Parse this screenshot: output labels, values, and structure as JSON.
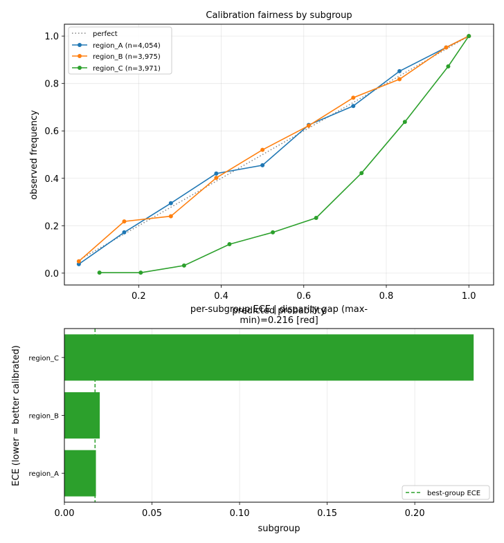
{
  "chart_data": [
    {
      "type": "line",
      "title": "Calibration fairness by subgroup",
      "xlabel": "predicted probability",
      "ylabel": "observed frequency",
      "xlim": [
        0.02,
        1.06
      ],
      "ylim": [
        -0.05,
        1.05
      ],
      "xticks": [
        0.2,
        0.4,
        0.6,
        0.8,
        1.0
      ],
      "yticks": [
        0.0,
        0.2,
        0.4,
        0.6,
        0.8,
        1.0
      ],
      "tick_labels_x": [
        "0.2",
        "0.4",
        "0.6",
        "0.8",
        "1.0"
      ],
      "tick_labels_y": [
        "0.0",
        "0.2",
        "0.4",
        "0.6",
        "0.8",
        "1.0"
      ],
      "grid": true,
      "legend_position": "top-left",
      "reference_line": {
        "name": "perfect",
        "color": "#808080",
        "style": "dotted",
        "x": [
          0.055,
          1.0
        ],
        "y": [
          0.055,
          1.0
        ]
      },
      "series": [
        {
          "name": "region_A (n=4,054)",
          "color": "#1f77b4",
          "x": [
            0.055,
            0.165,
            0.278,
            0.388,
            0.5,
            0.612,
            0.72,
            0.832,
            0.945,
            1.0
          ],
          "y": [
            0.038,
            0.172,
            0.295,
            0.42,
            0.455,
            0.625,
            0.705,
            0.852,
            0.952,
            1.0
          ]
        },
        {
          "name": "region_B (n=3,975)",
          "color": "#ff7f0e",
          "x": [
            0.055,
            0.165,
            0.278,
            0.388,
            0.5,
            0.612,
            0.72,
            0.832,
            0.945,
            1.0
          ],
          "y": [
            0.05,
            0.218,
            0.24,
            0.402,
            0.52,
            0.622,
            0.74,
            0.818,
            0.952,
            1.0
          ]
        },
        {
          "name": "region_C (n=3,971)",
          "color": "#2ca02c",
          "x": [
            0.105,
            0.205,
            0.31,
            0.42,
            0.525,
            0.63,
            0.74,
            0.845,
            0.95,
            1.0
          ],
          "y": [
            0.002,
            0.002,
            0.032,
            0.122,
            0.172,
            0.233,
            0.422,
            0.638,
            0.872,
            1.0
          ]
        }
      ]
    },
    {
      "type": "bar",
      "orientation": "horizontal",
      "title": "per-subgroup ECE  |  disparity gap (max-min)=0.216  [red]",
      "title_lines": [
        "per-subgroup ECE  |  disparity gap (max-",
        "min)=0.216  [red]"
      ],
      "xlabel": "subgroup",
      "ylabel": "ECE (lower = better calibrated)",
      "categories": [
        "region_A",
        "region_B",
        "region_C"
      ],
      "values": [
        0.018,
        0.0202,
        0.2336
      ],
      "bar_color": "#2ca02c",
      "xlim": [
        0.0,
        0.245
      ],
      "xticks": [
        0.0,
        0.05,
        0.1,
        0.15,
        0.2
      ],
      "tick_labels_x": [
        "0.00",
        "0.05",
        "0.10",
        "0.15",
        "0.20"
      ],
      "grid": true,
      "reference_line": {
        "name": "best-group ECE",
        "value": 0.0175,
        "color": "#2ca02c",
        "style": "dashed"
      },
      "legend_position": "bottom-right"
    }
  ]
}
